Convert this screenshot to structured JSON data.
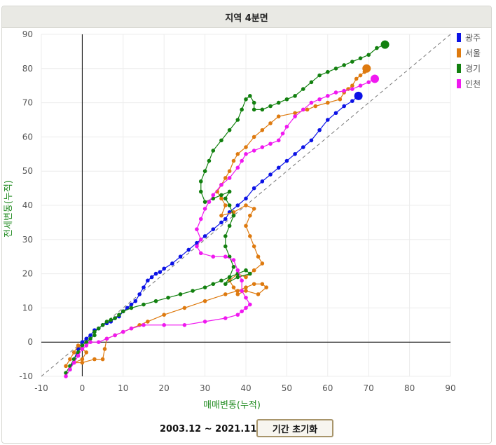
{
  "header": {
    "title": "지역 4분면"
  },
  "footer": {
    "range_text": "2003.12 ~ 2021.11",
    "reset_label": "기간 초기화"
  },
  "chart_data": {
    "type": "line",
    "title": "",
    "xlabel": "매매변동(누적)",
    "ylabel": "전세변동(누적)",
    "xlim": [
      -10,
      90
    ],
    "ylim": [
      -10,
      90
    ],
    "xticks": [
      -10,
      0,
      10,
      20,
      30,
      40,
      50,
      60,
      70,
      80,
      90
    ],
    "yticks": [
      -10,
      0,
      10,
      20,
      30,
      40,
      50,
      60,
      70,
      80,
      90
    ],
    "grid": true,
    "legend": "top-right",
    "reference_line": "y = x (dashed)",
    "series": [
      {
        "name": "광주",
        "color": "#0b12e6",
        "points": [
          [
            -3,
            -8
          ],
          [
            -2,
            -5
          ],
          [
            -1,
            -2
          ],
          [
            0,
            0
          ],
          [
            1,
            1
          ],
          [
            2,
            2
          ],
          [
            3,
            3.5
          ],
          [
            4,
            4
          ],
          [
            5,
            5
          ],
          [
            6,
            5.5
          ],
          [
            7,
            6
          ],
          [
            8,
            7
          ],
          [
            9,
            7.5
          ],
          [
            10,
            9
          ],
          [
            11,
            10
          ],
          [
            12,
            11
          ],
          [
            13,
            12
          ],
          [
            14,
            14
          ],
          [
            15,
            16
          ],
          [
            16,
            18
          ],
          [
            17,
            19
          ],
          [
            18,
            20
          ],
          [
            19,
            20.5
          ],
          [
            20,
            21.5
          ],
          [
            22,
            23
          ],
          [
            24,
            25
          ],
          [
            26,
            27
          ],
          [
            28,
            29
          ],
          [
            30,
            31
          ],
          [
            32,
            33
          ],
          [
            34,
            35
          ],
          [
            35,
            36
          ],
          [
            36,
            38
          ],
          [
            38,
            40
          ],
          [
            40,
            42
          ],
          [
            42,
            45
          ],
          [
            44,
            47
          ],
          [
            46,
            49
          ],
          [
            48,
            51
          ],
          [
            50,
            53
          ],
          [
            52,
            55
          ],
          [
            54,
            57
          ],
          [
            56,
            59
          ],
          [
            58,
            62
          ],
          [
            60,
            65
          ],
          [
            62,
            67
          ],
          [
            64,
            69
          ],
          [
            66,
            70.5
          ],
          [
            67.5,
            72
          ]
        ]
      },
      {
        "name": "서울",
        "color": "#de7a0f",
        "points": [
          [
            -4,
            -7
          ],
          [
            -3,
            -5
          ],
          [
            -2,
            -3
          ],
          [
            -1,
            -1
          ],
          [
            0,
            -2
          ],
          [
            1,
            -3
          ],
          [
            0,
            -5
          ],
          [
            -2,
            -6
          ],
          [
            0,
            -6
          ],
          [
            3,
            -5
          ],
          [
            5,
            -5
          ],
          [
            5.5,
            -2
          ],
          [
            6,
            1
          ],
          [
            8,
            2
          ],
          [
            10,
            3
          ],
          [
            12,
            4
          ],
          [
            14,
            5
          ],
          [
            16,
            6
          ],
          [
            20,
            8
          ],
          [
            25,
            10
          ],
          [
            30,
            12
          ],
          [
            35,
            14
          ],
          [
            38,
            15
          ],
          [
            40,
            16
          ],
          [
            42,
            17
          ],
          [
            44,
            17
          ],
          [
            45,
            16
          ],
          [
            43,
            14
          ],
          [
            40,
            15
          ],
          [
            38,
            14
          ],
          [
            37,
            16
          ],
          [
            36,
            18
          ],
          [
            38,
            20
          ],
          [
            40,
            19
          ],
          [
            42,
            21
          ],
          [
            44,
            23
          ],
          [
            43,
            25
          ],
          [
            42,
            28
          ],
          [
            41,
            31
          ],
          [
            40,
            34
          ],
          [
            41,
            37
          ],
          [
            42,
            39
          ],
          [
            40,
            40
          ],
          [
            37,
            38
          ],
          [
            34,
            37
          ],
          [
            35,
            40
          ],
          [
            34,
            42
          ],
          [
            33,
            44
          ],
          [
            34,
            46
          ],
          [
            35,
            48
          ],
          [
            36,
            50
          ],
          [
            37,
            53
          ],
          [
            38,
            55
          ],
          [
            40,
            57
          ],
          [
            42,
            60
          ],
          [
            44,
            62
          ],
          [
            46,
            64
          ],
          [
            48,
            66
          ],
          [
            52,
            67
          ],
          [
            55,
            68
          ],
          [
            57,
            69
          ],
          [
            60,
            70
          ],
          [
            63,
            71
          ],
          [
            64,
            73
          ],
          [
            65,
            74
          ],
          [
            66,
            75
          ],
          [
            67,
            77
          ],
          [
            68,
            78
          ],
          [
            69,
            79
          ],
          [
            69.5,
            80
          ]
        ]
      },
      {
        "name": "경기",
        "color": "#12800f",
        "points": [
          [
            -4,
            -9
          ],
          [
            -3,
            -7
          ],
          [
            -2,
            -5
          ],
          [
            -1,
            -3
          ],
          [
            0,
            -1
          ],
          [
            1,
            0
          ],
          [
            2,
            1
          ],
          [
            3,
            2
          ],
          [
            3,
            3
          ],
          [
            4,
            4
          ],
          [
            5,
            5
          ],
          [
            6,
            6
          ],
          [
            7,
            6.5
          ],
          [
            8,
            7
          ],
          [
            9,
            8
          ],
          [
            10,
            9
          ],
          [
            12,
            10
          ],
          [
            15,
            11
          ],
          [
            18,
            12
          ],
          [
            21,
            13
          ],
          [
            24,
            14
          ],
          [
            27,
            15
          ],
          [
            30,
            16
          ],
          [
            32,
            17
          ],
          [
            34,
            18
          ],
          [
            36,
            19
          ],
          [
            38,
            20
          ],
          [
            40,
            21
          ],
          [
            41,
            20
          ],
          [
            38,
            19
          ],
          [
            35,
            17
          ],
          [
            36,
            19
          ],
          [
            37,
            22
          ],
          [
            36,
            25
          ],
          [
            35,
            28
          ],
          [
            35,
            31
          ],
          [
            36,
            34
          ],
          [
            37,
            37
          ],
          [
            36,
            40
          ],
          [
            35,
            42
          ],
          [
            36,
            44
          ],
          [
            34,
            43
          ],
          [
            32,
            42
          ],
          [
            30,
            41
          ],
          [
            29,
            44
          ],
          [
            29,
            47
          ],
          [
            30,
            50
          ],
          [
            31,
            53
          ],
          [
            32,
            56
          ],
          [
            34,
            59
          ],
          [
            36,
            62
          ],
          [
            38,
            65
          ],
          [
            39,
            68
          ],
          [
            40,
            71
          ],
          [
            41,
            72
          ],
          [
            42,
            70
          ],
          [
            42,
            68
          ],
          [
            44,
            68
          ],
          [
            46,
            69
          ],
          [
            48,
            70
          ],
          [
            50,
            71
          ],
          [
            52,
            72
          ],
          [
            54,
            74
          ],
          [
            56,
            76
          ],
          [
            58,
            78
          ],
          [
            60,
            79
          ],
          [
            62,
            80
          ],
          [
            64,
            81
          ],
          [
            66,
            82
          ],
          [
            68,
            83
          ],
          [
            70,
            84
          ],
          [
            72,
            86
          ],
          [
            74,
            87
          ]
        ]
      },
      {
        "name": "인천",
        "color": "#f018f0",
        "points": [
          [
            -4,
            -10
          ],
          [
            -3,
            -8
          ],
          [
            -2,
            -6
          ],
          [
            -1,
            -4
          ],
          [
            0,
            -2
          ],
          [
            1,
            -1
          ],
          [
            2,
            0
          ],
          [
            4,
            0
          ],
          [
            6,
            1
          ],
          [
            8,
            2
          ],
          [
            10,
            3
          ],
          [
            12,
            4
          ],
          [
            15,
            5
          ],
          [
            20,
            5
          ],
          [
            25,
            5
          ],
          [
            30,
            6
          ],
          [
            35,
            7
          ],
          [
            38,
            8
          ],
          [
            39,
            9
          ],
          [
            40,
            10
          ],
          [
            41,
            11
          ],
          [
            40,
            13
          ],
          [
            39,
            15
          ],
          [
            39,
            18
          ],
          [
            38,
            21
          ],
          [
            37,
            24
          ],
          [
            35,
            25
          ],
          [
            32,
            25
          ],
          [
            29,
            26
          ],
          [
            28,
            28
          ],
          [
            29,
            30
          ],
          [
            28,
            33
          ],
          [
            29,
            36
          ],
          [
            30,
            39
          ],
          [
            31,
            41
          ],
          [
            32,
            43
          ],
          [
            34,
            46
          ],
          [
            36,
            48
          ],
          [
            38,
            51
          ],
          [
            39,
            53
          ],
          [
            40,
            55
          ],
          [
            42,
            56
          ],
          [
            44,
            57
          ],
          [
            46,
            58
          ],
          [
            48,
            59
          ],
          [
            49,
            61
          ],
          [
            50,
            63
          ],
          [
            52,
            66
          ],
          [
            54,
            68
          ],
          [
            56,
            70
          ],
          [
            58,
            71
          ],
          [
            60,
            72
          ],
          [
            62,
            73
          ],
          [
            64,
            73.5
          ],
          [
            66,
            74
          ],
          [
            68,
            75
          ],
          [
            70,
            76
          ],
          [
            71.5,
            77
          ]
        ]
      }
    ]
  }
}
